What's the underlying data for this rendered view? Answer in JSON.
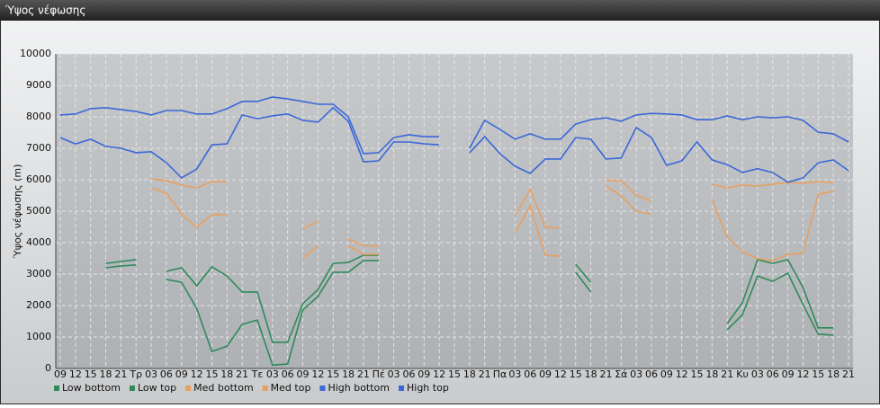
{
  "chart_data": {
    "type": "line",
    "title": "Ύψος νέφωσης",
    "y_label": "Ύψος νέφωσης (m)",
    "categories": [
      "09",
      "12",
      "15",
      "18",
      "21",
      "Τρ",
      "03",
      "06",
      "09",
      "12",
      "15",
      "18",
      "21",
      "Τε",
      "03",
      "06",
      "09",
      "12",
      "15",
      "18",
      "21",
      "Πέ",
      "03",
      "06",
      "09",
      "12",
      "15",
      "18",
      "21",
      "Πα",
      "03",
      "06",
      "09",
      "12",
      "15",
      "18",
      "21",
      "Σά",
      "03",
      "06",
      "09",
      "12",
      "15",
      "18",
      "21",
      "Κυ",
      "03",
      "06",
      "09",
      "12",
      "15",
      "18",
      "21"
    ],
    "ylim": [
      0,
      10000
    ],
    "yticks": [
      0,
      1000,
      2000,
      3000,
      4000,
      5000,
      6000,
      7000,
      8000,
      9000,
      10000
    ],
    "grid": true,
    "legend": "bottom-left",
    "series": [
      {
        "name": "Low bottom",
        "color": "#2f8a5a",
        "values": [
          null,
          null,
          null,
          3200,
          3260,
          3290,
          null,
          2830,
          2740,
          1910,
          540,
          710,
          1400,
          1540,
          110,
          140,
          1860,
          2290,
          3060,
          3060,
          3430,
          3430,
          null,
          null,
          null,
          null,
          null,
          null,
          null,
          null,
          null,
          null,
          null,
          null,
          3060,
          2430,
          null,
          null,
          null,
          null,
          null,
          null,
          null,
          null,
          1230,
          1710,
          2940,
          2770,
          3030,
          2030,
          1090,
          1060,
          null
        ]
      },
      {
        "name": "Low top",
        "color": "#2f8a5a",
        "values": [
          null,
          null,
          null,
          3340,
          3400,
          3460,
          null,
          3090,
          3200,
          2630,
          3230,
          2940,
          2430,
          2430,
          830,
          830,
          2060,
          2510,
          3340,
          3370,
          3600,
          3600,
          null,
          null,
          null,
          null,
          null,
          null,
          null,
          null,
          null,
          null,
          null,
          null,
          3310,
          2740,
          null,
          null,
          null,
          null,
          null,
          null,
          null,
          null,
          1430,
          2090,
          3460,
          3340,
          3460,
          2570,
          1290,
          1290,
          null
        ]
      },
      {
        "name": "Med bottom",
        "color": "#e8a060",
        "values": [
          null,
          null,
          null,
          null,
          null,
          null,
          5740,
          5570,
          4910,
          4490,
          4890,
          4890,
          null,
          null,
          null,
          null,
          3510,
          3890,
          null,
          3910,
          3630,
          3630,
          null,
          null,
          null,
          null,
          null,
          null,
          null,
          null,
          4310,
          5170,
          3600,
          3570,
          null,
          null,
          5800,
          5490,
          5000,
          4910,
          null,
          null,
          null,
          5370,
          4170,
          3710,
          3490,
          3430,
          3630,
          3660,
          5540,
          5630,
          null
        ]
      },
      {
        "name": "Med top",
        "color": "#e8a060",
        "values": [
          null,
          null,
          null,
          null,
          null,
          null,
          6030,
          5970,
          5830,
          5740,
          5940,
          5940,
          null,
          null,
          null,
          null,
          4430,
          4690,
          null,
          4110,
          3910,
          3890,
          null,
          null,
          null,
          null,
          null,
          null,
          null,
          null,
          4860,
          5690,
          4490,
          4460,
          null,
          null,
          5970,
          5970,
          5510,
          5310,
          null,
          null,
          null,
          5860,
          5740,
          5830,
          5800,
          5860,
          5910,
          5890,
          5940,
          5910,
          null
        ]
      },
      {
        "name": "High bottom",
        "color": "#3a68d8",
        "values": [
          7340,
          7140,
          7290,
          7060,
          7000,
          6860,
          6890,
          6540,
          6060,
          6340,
          7110,
          7140,
          8060,
          7940,
          8030,
          8090,
          7890,
          7830,
          8290,
          7860,
          6570,
          6600,
          7200,
          7200,
          7140,
          7110,
          null,
          6860,
          7370,
          6830,
          6430,
          6200,
          6660,
          6660,
          7340,
          7290,
          6660,
          6690,
          7660,
          7340,
          6460,
          6600,
          7200,
          6630,
          6480,
          6230,
          6350,
          6230,
          5920,
          6060,
          6540,
          6630,
          6290
        ]
      },
      {
        "name": "High top",
        "color": "#3a68d8",
        "values": [
          8060,
          8090,
          8260,
          8290,
          8230,
          8170,
          8060,
          8200,
          8200,
          8090,
          8090,
          8260,
          8490,
          8490,
          8630,
          8570,
          8490,
          8400,
          8400,
          8000,
          6830,
          6860,
          7340,
          7430,
          7370,
          7370,
          null,
          7000,
          7890,
          7600,
          7290,
          7460,
          7290,
          7290,
          7770,
          7910,
          7970,
          7860,
          8060,
          8110,
          8090,
          8060,
          7910,
          7910,
          8030,
          7910,
          8000,
          7970,
          8000,
          7890,
          7510,
          7460,
          7200
        ]
      }
    ]
  }
}
